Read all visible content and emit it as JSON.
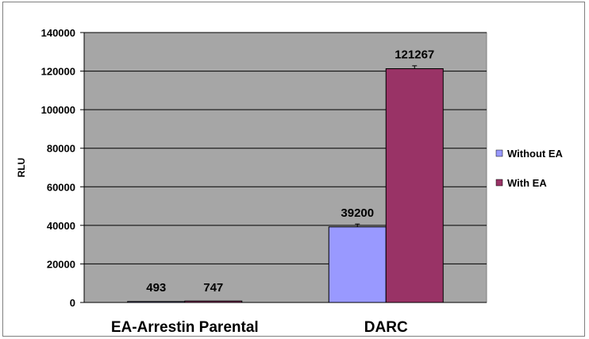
{
  "chart_data": {
    "type": "bar",
    "title": "",
    "xlabel": "",
    "ylabel": "RLU",
    "ylim": [
      0,
      140000
    ],
    "yticks": [
      0,
      20000,
      40000,
      60000,
      80000,
      100000,
      120000,
      140000
    ],
    "categories": [
      "EA-Arrestin Parental",
      "DARC"
    ],
    "series": [
      {
        "name": "Without EA",
        "color": "#9999ff",
        "values": [
          493,
          39200
        ],
        "labels": [
          "493",
          "39200"
        ],
        "errors": [
          0,
          1500
        ]
      },
      {
        "name": "With EA",
        "color": "#993366",
        "values": [
          747,
          121267
        ],
        "labels": [
          "747",
          "121267"
        ],
        "errors": [
          0,
          1500
        ]
      }
    ],
    "grid": true,
    "plot_background": "#a6a6a6",
    "legend_position": "right"
  }
}
